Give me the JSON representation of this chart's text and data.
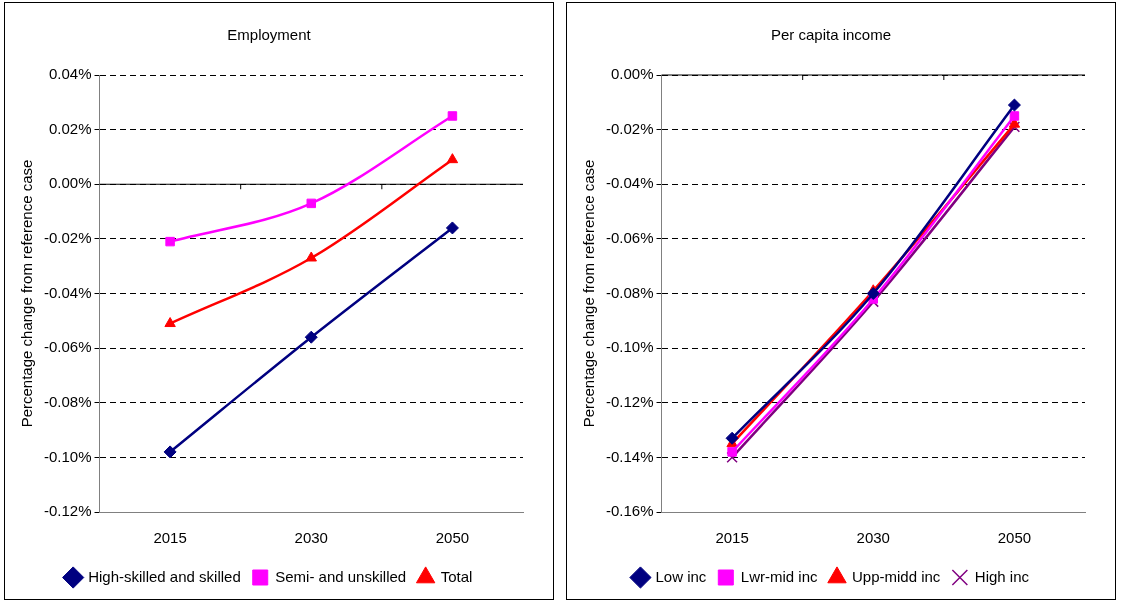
{
  "chart_data": [
    {
      "type": "line",
      "title": "Employment",
      "ylabel": "Percentage change from reference case",
      "categories": [
        "2015",
        "2030",
        "2050"
      ],
      "series": [
        {
          "name": "High-skilled and skilled",
          "color": "#000080",
          "marker": "diamond",
          "values": [
            -0.098,
            -0.056,
            -0.016
          ]
        },
        {
          "name": "Semi- and unskilled",
          "color": "#ff00ff",
          "marker": "square",
          "values": [
            -0.021,
            -0.007,
            0.025
          ]
        },
        {
          "name": "Total",
          "color": "#ff0000",
          "marker": "triangle",
          "values": [
            -0.051,
            -0.027,
            0.009
          ]
        }
      ],
      "ylim": [
        -0.12,
        0.04
      ],
      "yticks": [
        {
          "value": -0.12,
          "label": "-0.12%"
        },
        {
          "value": -0.1,
          "label": "-0.10%"
        },
        {
          "value": -0.08,
          "label": "-0.08%"
        },
        {
          "value": -0.06,
          "label": "-0.06%"
        },
        {
          "value": -0.04,
          "label": "-0.04%"
        },
        {
          "value": -0.02,
          "label": "-0.02%"
        },
        {
          "value": 0,
          "label": "0.00%"
        },
        {
          "value": 0.02,
          "label": "0.02%"
        },
        {
          "value": 0.04,
          "label": "0.04%"
        }
      ],
      "grid": "y",
      "legend": "bottom",
      "line_style": "solid"
    },
    {
      "type": "line",
      "title": "Per capita income",
      "ylabel": "Percentage change from reference case",
      "categories": [
        "2015",
        "2030",
        "2050"
      ],
      "series": [
        {
          "name": "Low inc",
          "color": "#000080",
          "marker": "diamond",
          "values": [
            -0.133,
            -0.08,
            -0.011
          ]
        },
        {
          "name": "Lwr-mid inc",
          "color": "#ff00ff",
          "marker": "square",
          "values": [
            -0.138,
            -0.082,
            -0.015
          ]
        },
        {
          "name": "Upp-midd inc",
          "color": "#ff0000",
          "marker": "triangle",
          "values": [
            -0.135,
            -0.079,
            -0.018
          ]
        },
        {
          "name": "High inc",
          "color": "#800080",
          "marker": "cross",
          "values": [
            -0.14,
            -0.083,
            -0.019
          ]
        }
      ],
      "ylim": [
        -0.16,
        0
      ],
      "yticks": [
        {
          "value": -0.16,
          "label": "-0.16%"
        },
        {
          "value": -0.14,
          "label": "-0.14%"
        },
        {
          "value": -0.12,
          "label": "-0.12%"
        },
        {
          "value": -0.1,
          "label": "-0.10%"
        },
        {
          "value": -0.08,
          "label": "-0.08%"
        },
        {
          "value": -0.06,
          "label": "-0.06%"
        },
        {
          "value": -0.04,
          "label": "-0.04%"
        },
        {
          "value": -0.02,
          "label": "-0.02%"
        },
        {
          "value": 0,
          "label": "0.00%"
        }
      ],
      "grid": "y",
      "legend": "bottom",
      "line_style": "solid"
    }
  ]
}
